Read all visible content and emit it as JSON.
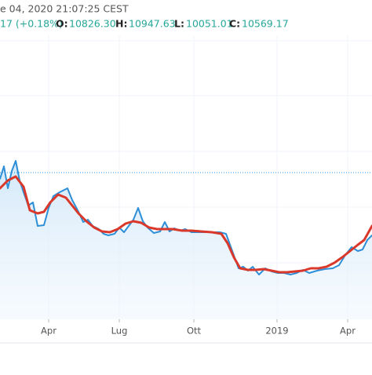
{
  "chart_data": {
    "type": "line",
    "header": {
      "datetime": "e 04, 2020 21:07:25 CEST",
      "change": "17 (+0.18%)",
      "open_label": "O:",
      "open": "10826.30",
      "high_label": "H:",
      "high": "10947.63",
      "low_label": "L:",
      "low": "10051.01",
      "close_label": "C:",
      "close": "10569.17"
    },
    "xlim": [
      0,
      474
    ],
    "xticks": [
      {
        "value": 62,
        "label": "Apr"
      },
      {
        "value": 152,
        "label": "Lug"
      },
      {
        "value": 247,
        "label": "Ott"
      },
      {
        "value": 353,
        "label": "2019"
      },
      {
        "value": 443,
        "label": "Apr"
      }
    ],
    "ylim": [
      0,
      407
    ],
    "yticks": [
      72,
      143,
      214,
      285,
      355
    ],
    "grid": true,
    "price_line": 187,
    "series": [
      {
        "color": "#2d8fd8",
        "area": true,
        "x": [
          0,
          5,
          10,
          15,
          20,
          25,
          30,
          36,
          42,
          48,
          56,
          62,
          68,
          76,
          86,
          92,
          100,
          106,
          112,
          118,
          126,
          132,
          138,
          146,
          152,
          158,
          164,
          170,
          176,
          182,
          188,
          196,
          204,
          210,
          216,
          222,
          230,
          236,
          244,
          252,
          260,
          270,
          280,
          288,
          296,
          304,
          310,
          316,
          322,
          330,
          338,
          346,
          354,
          362,
          370,
          378,
          386,
          394,
          404,
          414,
          424,
          432,
          440,
          448,
          456,
          462,
          468,
          474
        ],
        "values": [
          179,
          195,
          167,
          189,
          202,
          177,
          162,
          145,
          149,
          119,
          120,
          142,
          157,
          162,
          167,
          152,
          137,
          124,
          127,
          119,
          115,
          109,
          107,
          109,
          117,
          111,
          119,
          127,
          142,
          125,
          117,
          110,
          112,
          124,
          112,
          116,
          113,
          115,
          111,
          111,
          111,
          111,
          111,
          109,
          87,
          65,
          67,
          62,
          67,
          57,
          65,
          61,
          59,
          59,
          57,
          59,
          63,
          59,
          62,
          64,
          65,
          69,
          82,
          92,
          87,
          89,
          101,
          107
        ]
      },
      {
        "color": "#d9382b",
        "area": false,
        "x": [
          0,
          10,
          20,
          30,
          38,
          48,
          56,
          64,
          74,
          84,
          92,
          100,
          110,
          120,
          130,
          140,
          150,
          160,
          170,
          180,
          190,
          200,
          210,
          220,
          232,
          244,
          256,
          270,
          282,
          290,
          298,
          306,
          316,
          326,
          336,
          346,
          356,
          366,
          376,
          386,
          396,
          406,
          416,
          426,
          436,
          446,
          456,
          464,
          474
        ],
        "values": [
          167,
          177,
          182,
          169,
          139,
          135,
          137,
          149,
          159,
          155,
          145,
          135,
          125,
          117,
          112,
          111,
          115,
          122,
          125,
          123,
          117,
          115,
          115,
          115,
          113,
          113,
          112,
          111,
          109,
          97,
          79,
          65,
          63,
          63,
          64,
          62,
          60,
          60,
          61,
          62,
          65,
          65,
          67,
          72,
          79,
          87,
          95,
          101,
          119
        ]
      }
    ]
  }
}
